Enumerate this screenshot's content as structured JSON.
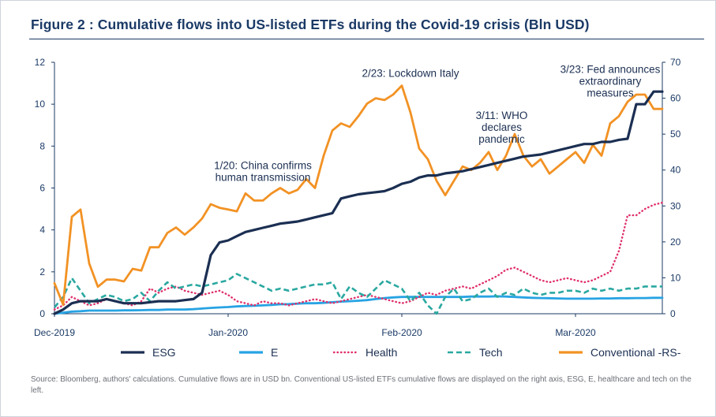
{
  "figure_title": "Figure 2 : Cumulative flows into US-listed ETFs during the Covid-19 crisis (Bln USD)",
  "source_note": "Source: Bloomberg, authors' calculations. Cumulative flows are in USD bn. Conventional US-listed ETFs cumulative flows are displayed on the right axis, ESG, E, healthcare and tech on the left.",
  "chart_data": {
    "type": "line",
    "x_tick_labels": [
      "Dec-2019",
      "Jan-2020",
      "Feb-2020",
      "Mar-2020"
    ],
    "x_tick_positions": [
      0,
      20,
      40,
      60
    ],
    "x_range": [
      0,
      70
    ],
    "y_left": {
      "range": [
        0,
        12
      ],
      "ticks": [
        0,
        2,
        4,
        6,
        8,
        10,
        12
      ]
    },
    "y_right": {
      "range": [
        0,
        70
      ],
      "ticks": [
        0,
        10,
        20,
        30,
        40,
        50,
        60,
        70
      ]
    },
    "grid": false,
    "legend_position": "bottom",
    "series": [
      {
        "name": "ESG",
        "axis": "left",
        "color": "#1b2f52",
        "style": "solid",
        "values": [
          0,
          0.2,
          0.5,
          0.6,
          0.6,
          0.6,
          0.7,
          0.6,
          0.5,
          0.5,
          0.5,
          0.55,
          0.6,
          0.6,
          0.6,
          0.65,
          0.7,
          1.0,
          2.8,
          3.4,
          3.5,
          3.7,
          3.9,
          4.0,
          4.1,
          4.2,
          4.3,
          4.35,
          4.4,
          4.5,
          4.6,
          4.7,
          4.8,
          5.5,
          5.6,
          5.7,
          5.75,
          5.8,
          5.85,
          6.0,
          6.2,
          6.3,
          6.5,
          6.6,
          6.6,
          6.7,
          6.75,
          6.8,
          6.9,
          7.0,
          7.1,
          7.2,
          7.3,
          7.4,
          7.5,
          7.55,
          7.6,
          7.7,
          7.8,
          7.9,
          8.0,
          8.1,
          8.1,
          8.2,
          8.2,
          8.3,
          8.35,
          10.0,
          10.0,
          10.6,
          10.6
        ]
      },
      {
        "name": "E",
        "axis": "left",
        "color": "#27a3e3",
        "style": "solid",
        "values": [
          0,
          0.05,
          0.1,
          0.12,
          0.15,
          0.15,
          0.15,
          0.15,
          0.16,
          0.16,
          0.17,
          0.18,
          0.18,
          0.2,
          0.2,
          0.2,
          0.22,
          0.25,
          0.28,
          0.3,
          0.32,
          0.35,
          0.37,
          0.38,
          0.4,
          0.42,
          0.45,
          0.46,
          0.48,
          0.5,
          0.5,
          0.52,
          0.55,
          0.58,
          0.6,
          0.62,
          0.65,
          0.7,
          0.75,
          0.78,
          0.8,
          0.8,
          0.8,
          0.8,
          0.8,
          0.8,
          0.8,
          0.8,
          0.82,
          0.82,
          0.82,
          0.83,
          0.82,
          0.8,
          0.78,
          0.76,
          0.75,
          0.74,
          0.73,
          0.72,
          0.72,
          0.72,
          0.72,
          0.73,
          0.73,
          0.74,
          0.74,
          0.75,
          0.75,
          0.76,
          0.76
        ]
      },
      {
        "name": "Health",
        "axis": "left",
        "color": "#e0306b",
        "style": "dotted",
        "values": [
          0.2,
          0.4,
          0.8,
          0.6,
          0.4,
          0.5,
          0.7,
          0.6,
          0.5,
          0.4,
          0.6,
          1.2,
          1.0,
          1.2,
          1.3,
          1.1,
          1.0,
          0.9,
          1.0,
          1.1,
          0.9,
          0.6,
          0.5,
          0.4,
          0.6,
          0.5,
          0.5,
          0.4,
          0.5,
          0.6,
          0.7,
          0.6,
          0.5,
          0.6,
          0.7,
          0.8,
          0.9,
          0.8,
          0.7,
          0.6,
          0.5,
          0.6,
          0.8,
          1.0,
          0.9,
          1.1,
          1.2,
          1.3,
          1.2,
          1.4,
          1.6,
          1.8,
          2.1,
          2.2,
          2.0,
          1.8,
          1.6,
          1.5,
          1.6,
          1.7,
          1.6,
          1.5,
          1.6,
          1.8,
          2.0,
          3.0,
          4.7,
          4.7,
          5.0,
          5.2,
          5.3
        ]
      },
      {
        "name": "Tech",
        "axis": "left",
        "color": "#2aa8a0",
        "style": "dashed",
        "values": [
          0.3,
          0.8,
          1.7,
          1.1,
          0.5,
          0.7,
          0.9,
          0.8,
          0.6,
          0.7,
          1.0,
          0.6,
          1.1,
          1.5,
          1.2,
          1.3,
          1.4,
          1.3,
          1.4,
          1.5,
          1.6,
          1.9,
          1.7,
          1.5,
          1.3,
          1.1,
          1.2,
          1.1,
          1.2,
          1.3,
          1.4,
          1.4,
          1.5,
          0.7,
          1.3,
          1.0,
          0.8,
          1.2,
          1.6,
          1.4,
          1.2,
          0.6,
          1.0,
          0.4,
          0.0,
          0.8,
          1.2,
          0.6,
          0.7,
          1.0,
          1.2,
          0.8,
          1.0,
          0.9,
          1.2,
          1.0,
          0.9,
          1.0,
          1.0,
          1.1,
          1.1,
          1.0,
          1.2,
          1.1,
          1.2,
          1.1,
          1.2,
          1.2,
          1.3,
          1.3,
          1.3
        ]
      },
      {
        "name": "Conventional -RS-",
        "axis": "right",
        "color": "#f29224",
        "style": "solid",
        "values": [
          8.5,
          2.5,
          27,
          29,
          14,
          7.5,
          9.5,
          9.5,
          9.0,
          12.5,
          12.0,
          18.5,
          18.5,
          22.5,
          24.0,
          22.0,
          24.0,
          26.5,
          30.5,
          29.5,
          29.0,
          28.5,
          33.5,
          31.5,
          31.5,
          33.5,
          35.0,
          33.5,
          34.5,
          37.5,
          35.0,
          44.0,
          51.0,
          53.0,
          52.0,
          55.0,
          58.5,
          60.0,
          59.5,
          61.0,
          63.5,
          56.0,
          46.0,
          43.0,
          37.0,
          33.0,
          37.0,
          41.0,
          40.0,
          42.0,
          45.0,
          40.0,
          44.0,
          50.0,
          44.0,
          41.0,
          43.0,
          39.0,
          41.0,
          43.0,
          45.0,
          42.0,
          47.0,
          44.0,
          53.0,
          55.0,
          59.0,
          61.0,
          61.0,
          57.0,
          57.0
        ]
      }
    ],
    "annotations": [
      {
        "lines": [
          "1/20: China confirms",
          "human transmission"
        ],
        "x": 24,
        "y": 6.9
      },
      {
        "lines": [
          "2/23: Lockdown Italy"
        ],
        "x": 41,
        "y": 11.3
      },
      {
        "lines": [
          "3/11: WHO",
          "declares",
          "pandemic"
        ],
        "x": 51.5,
        "y": 9.3
      },
      {
        "lines": [
          "3/23: Fed announces",
          "extraordinary",
          "measures"
        ],
        "x": 64,
        "y": 11.5
      }
    ]
  }
}
